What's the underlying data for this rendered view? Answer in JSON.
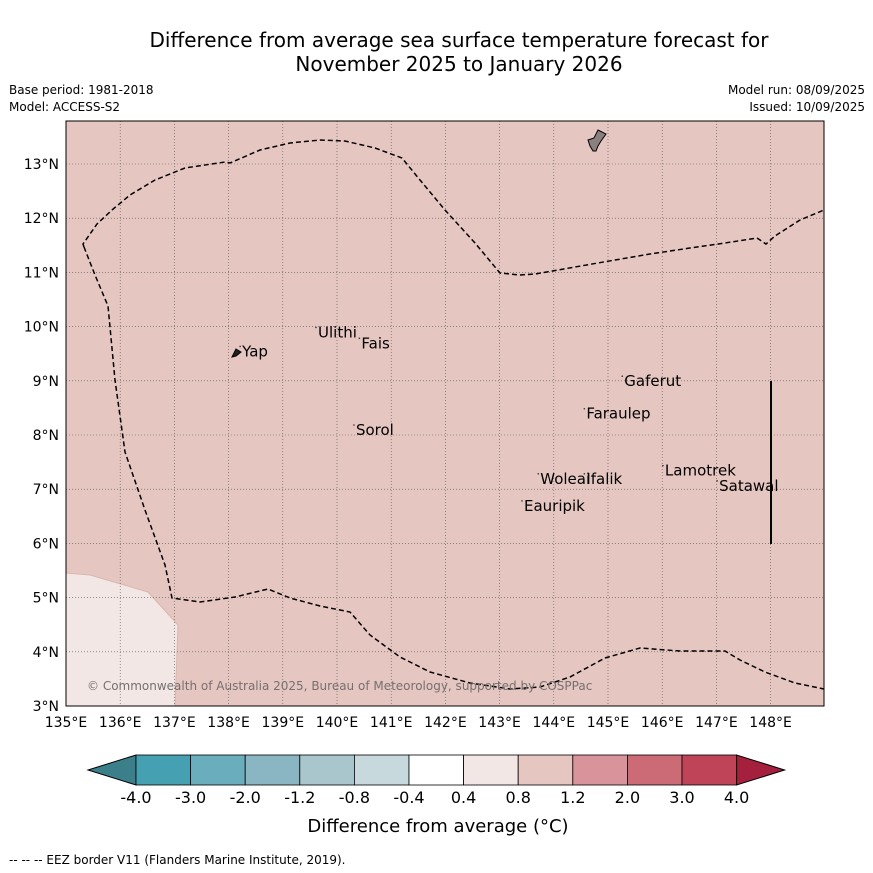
{
  "title": {
    "line1": "Difference from average sea surface temperature forecast for",
    "line2": "November 2025 to January 2026"
  },
  "meta": {
    "base_period": "Base period: 1981-2018",
    "model": "Model: ACCESS-S2",
    "model_run": "Model run: 08/09/2025",
    "issued": "Issued: 10/09/2025"
  },
  "map": {
    "lon_labels": [
      "135°E",
      "136°E",
      "137°E",
      "138°E",
      "139°E",
      "140°E",
      "141°E",
      "142°E",
      "143°E",
      "144°E",
      "145°E",
      "146°E",
      "147°E",
      "148°E"
    ],
    "lat_labels": [
      "3°N",
      "4°N",
      "5°N",
      "6°N",
      "7°N",
      "8°N",
      "9°N",
      "10°N",
      "11°N",
      "12°N",
      "13°N"
    ],
    "lon_range": [
      135,
      149
    ],
    "lat_range": [
      3,
      13.8
    ],
    "places": [
      {
        "name": "Yap",
        "lon": 138.25,
        "lat": 9.45
      },
      {
        "name": "Ulithi",
        "lon": 139.65,
        "lat": 9.8
      },
      {
        "name": "Fais",
        "lon": 140.45,
        "lat": 9.6
      },
      {
        "name": "Sorol",
        "lon": 140.35,
        "lat": 8.0
      },
      {
        "name": "Gaferut",
        "lon": 145.3,
        "lat": 8.9
      },
      {
        "name": "Faraulep",
        "lon": 144.6,
        "lat": 8.3
      },
      {
        "name": "Woleai",
        "lon": 143.75,
        "lat": 7.1
      },
      {
        "name": "Ifalik",
        "lon": 144.6,
        "lat": 7.1
      },
      {
        "name": "Lamotrek",
        "lon": 146.05,
        "lat": 7.25
      },
      {
        "name": "Satawal",
        "lon": 147.05,
        "lat": 6.97
      },
      {
        "name": "Eauripik",
        "lon": 143.45,
        "lat": 6.6
      }
    ],
    "copyright": "© Commonwealth of Australia 2025, Bureau of Meteorology, supported by COSPPac",
    "colors": {
      "background_anomaly": "#e6c6c1",
      "low_anomaly_patch": "#f3e7e5",
      "land": "#8a8080"
    }
  },
  "colorbar": {
    "ticks": [
      "-4.0",
      "-3.0",
      "-2.0",
      "-1.2",
      "-0.8",
      "-0.4",
      "0.4",
      "0.8",
      "1.2",
      "2.0",
      "3.0",
      "4.0"
    ],
    "colors": [
      "#3b7f8a",
      "#45a0b2",
      "#6aaebd",
      "#89b6c2",
      "#a9c6cd",
      "#c8d9dd",
      "#ffffff",
      "#f3e7e5",
      "#e6c6c1",
      "#d9939a",
      "#cc6b75",
      "#c04457",
      "#a4203d"
    ],
    "title": "Difference from average (°C)"
  },
  "footnote": "--  --  -- EEZ border V11 (Flanders Marine Institute, 2019)."
}
